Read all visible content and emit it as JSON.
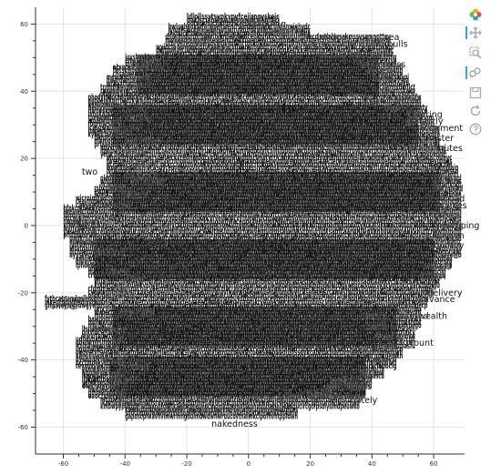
{
  "chart_data": {
    "type": "scatter",
    "title": "",
    "xlabel": "",
    "ylabel": "",
    "xlim": [
      -69,
      70
    ],
    "ylim": [
      -68,
      65
    ],
    "x_ticks": [
      "-60",
      "-40",
      "-20",
      "0",
      "20",
      "40",
      "60"
    ],
    "y_ticks": [
      "60",
      "40",
      "20",
      "0",
      "-20",
      "-40",
      "-60"
    ],
    "grid": true,
    "legend": "none",
    "points": [
      {
        "x": -5,
        "y": 61,
        "label": "breast",
        "size": "large"
      },
      {
        "x": 0,
        "y": 60,
        "label": "standing",
        "size": "large"
      },
      {
        "x": 8,
        "y": 58,
        "label": "fishing",
        "size": "large"
      },
      {
        "x": 4,
        "y": 58,
        "label": "looked",
        "size": "large"
      },
      {
        "x": -18,
        "y": 58,
        "label": "ferried",
        "size": "large"
      },
      {
        "x": -24,
        "y": 55,
        "label": "rejoiced",
        "size": "large"
      },
      {
        "x": 22,
        "y": 56,
        "label": "tended",
        "size": "large"
      },
      {
        "x": 18,
        "y": 54,
        "label": "reverse",
        "size": "large"
      },
      {
        "x": 31,
        "y": 54,
        "label": "drowning",
        "size": "large"
      },
      {
        "x": 36,
        "y": 55,
        "label": "paused",
        "size": "large"
      },
      {
        "x": 44,
        "y": 56,
        "label": "sea",
        "size": "large"
      },
      {
        "x": 45,
        "y": 54,
        "label": "bulls",
        "size": "large"
      },
      {
        "x": -25,
        "y": 53,
        "label": "along",
        "size": "large"
      },
      {
        "x": -13,
        "y": 53,
        "label": "lying",
        "size": "large"
      },
      {
        "x": 22,
        "y": 51,
        "label": "shattered",
        "size": "large"
      },
      {
        "x": 35,
        "y": 51,
        "label": "sandals",
        "size": "large"
      },
      {
        "x": -38,
        "y": 49,
        "label": "streets",
        "size": "large"
      },
      {
        "x": 36,
        "y": 48,
        "label": "wilderness",
        "size": "large"
      },
      {
        "x": -43,
        "y": 47,
        "label": "baskets",
        "size": "large"
      },
      {
        "x": -33,
        "y": 47,
        "label": "bow",
        "size": "large"
      },
      {
        "x": 39,
        "y": 46,
        "label": "reap",
        "size": "large"
      },
      {
        "x": -39,
        "y": 44,
        "label": "feast",
        "size": "large"
      },
      {
        "x": 40,
        "y": 44,
        "label": "bless",
        "size": "large"
      },
      {
        "x": -36,
        "y": 42,
        "label": "sun",
        "size": "large"
      },
      {
        "x": -46,
        "y": 40,
        "label": "roof",
        "size": "large"
      },
      {
        "x": 43,
        "y": 40,
        "label": "fire",
        "size": "large"
      },
      {
        "x": 38,
        "y": 37,
        "label": "hath",
        "size": "large"
      },
      {
        "x": 47,
        "y": 38,
        "label": "stakes",
        "size": "large"
      },
      {
        "x": -51,
        "y": 36,
        "label": "blemish",
        "size": "large"
      },
      {
        "x": 44,
        "y": 35,
        "label": "inning",
        "size": "large"
      },
      {
        "x": -41,
        "y": 35,
        "label": "honey",
        "size": "large"
      },
      {
        "x": 52,
        "y": 33,
        "label": "offering",
        "size": "large"
      },
      {
        "x": -40,
        "y": 32,
        "label": "curse",
        "size": "large"
      },
      {
        "x": 51,
        "y": 31,
        "label": "gallantly",
        "size": "large"
      },
      {
        "x": -49,
        "y": 31,
        "label": "blood",
        "size": "large"
      },
      {
        "x": 56,
        "y": 29,
        "label": "judgment",
        "size": "large"
      },
      {
        "x": -44,
        "y": 29,
        "label": "above",
        "size": "large"
      },
      {
        "x": -48,
        "y": 27,
        "label": "tables",
        "size": "large"
      },
      {
        "x": 55,
        "y": 26,
        "label": "minister",
        "size": "large"
      },
      {
        "x": -40,
        "y": 25,
        "label": "sacrifice",
        "size": "large"
      },
      {
        "x": 50,
        "y": 23,
        "label": "spoken",
        "size": "large"
      },
      {
        "x": 58,
        "y": 23,
        "label": "minutes",
        "size": "large"
      },
      {
        "x": -40,
        "y": 22,
        "label": "came",
        "size": "large"
      },
      {
        "x": 56,
        "y": 21,
        "label": "either",
        "size": "large"
      },
      {
        "x": -41,
        "y": 18,
        "label": "tongues",
        "size": "large"
      },
      {
        "x": 57,
        "y": 17,
        "label": "sandy",
        "size": "large"
      },
      {
        "x": -54,
        "y": 16,
        "label": "two",
        "size": "large"
      },
      {
        "x": -40,
        "y": 15,
        "label": "corners",
        "size": "large"
      },
      {
        "x": 60,
        "y": 14,
        "label": "goats",
        "size": "large"
      },
      {
        "x": -38,
        "y": 13,
        "label": "raiment",
        "size": "large"
      },
      {
        "x": 60,
        "y": 11,
        "label": "stoned",
        "size": "large"
      },
      {
        "x": -46,
        "y": 11,
        "label": "width",
        "size": "large"
      },
      {
        "x": -41,
        "y": 9,
        "label": "pillars",
        "size": "large"
      },
      {
        "x": 62,
        "y": 8,
        "label": "broad",
        "size": "large"
      },
      {
        "x": -49,
        "y": 6,
        "label": "covered",
        "size": "large"
      },
      {
        "x": 62,
        "y": 6,
        "label": "spices",
        "size": "large"
      },
      {
        "x": -59,
        "y": 4,
        "label": "eat",
        "size": "large"
      },
      {
        "x": 60,
        "y": 3,
        "label": "bread",
        "size": "large"
      },
      {
        "x": -57,
        "y": 1,
        "label": "wheat",
        "size": "large"
      },
      {
        "x": 63,
        "y": 0,
        "label": "weeping",
        "size": "large"
      },
      {
        "x": -56,
        "y": -2,
        "label": "drink",
        "size": "large"
      },
      {
        "x": 60,
        "y": -3,
        "label": "garden",
        "size": "large"
      },
      {
        "x": -56,
        "y": -5,
        "label": "taste",
        "size": "large"
      },
      {
        "x": 61,
        "y": -6,
        "label": "barley",
        "size": "large"
      },
      {
        "x": -50,
        "y": -8,
        "label": "ground",
        "size": "large"
      },
      {
        "x": 60,
        "y": -9,
        "label": "cattle",
        "size": "large"
      },
      {
        "x": -55,
        "y": -11,
        "label": "figs",
        "size": "large"
      },
      {
        "x": 57,
        "y": -12,
        "label": "vessel",
        "size": "large"
      },
      {
        "x": -46,
        "y": -14,
        "label": "vines",
        "size": "large"
      },
      {
        "x": 56,
        "y": -15,
        "label": "priest",
        "size": "large"
      },
      {
        "x": -40,
        "y": -16,
        "label": "clean",
        "size": "large"
      },
      {
        "x": -44,
        "y": -19,
        "label": "cast",
        "size": "large"
      },
      {
        "x": 58,
        "y": -20,
        "label": "delivery",
        "size": "large"
      },
      {
        "x": -46,
        "y": -21,
        "label": "barren",
        "size": "large"
      },
      {
        "x": 55,
        "y": -22,
        "label": "advance",
        "size": "large"
      },
      {
        "x": -61,
        "y": -22,
        "label": "stunned",
        "size": "large"
      },
      {
        "x": -64,
        "y": -24,
        "label": "smote",
        "size": "large"
      },
      {
        "x": 45,
        "y": -24,
        "label": "nonce",
        "size": "large"
      },
      {
        "x": -42,
        "y": -26,
        "label": "strength",
        "size": "large"
      },
      {
        "x": 37,
        "y": -27,
        "label": "serve",
        "size": "large"
      },
      {
        "x": 38,
        "y": -30,
        "label": "boar",
        "size": "large"
      },
      {
        "x": 48,
        "y": -27,
        "label": "wanted",
        "size": "large"
      },
      {
        "x": 55,
        "y": -27,
        "label": "wealth",
        "size": "large"
      },
      {
        "x": -50,
        "y": -31,
        "label": "brother",
        "size": "large"
      },
      {
        "x": 41,
        "y": -33,
        "label": "weapon",
        "size": "large"
      },
      {
        "x": -44,
        "y": -34,
        "label": "lot",
        "size": "large"
      },
      {
        "x": 42,
        "y": -36,
        "label": "bath",
        "size": "large"
      },
      {
        "x": 52,
        "y": -35,
        "label": "count",
        "size": "large"
      },
      {
        "x": -52,
        "y": -36,
        "label": "fortune",
        "size": "large"
      },
      {
        "x": 33,
        "y": -37,
        "label": "spending",
        "size": "large"
      },
      {
        "x": -56,
        "y": -39,
        "label": "festival",
        "size": "large"
      },
      {
        "x": -47,
        "y": -40,
        "label": "seven",
        "size": "large"
      },
      {
        "x": 40,
        "y": -40,
        "label": "poor",
        "size": "large"
      },
      {
        "x": -42,
        "y": -42,
        "label": "fasting",
        "size": "large"
      },
      {
        "x": -50,
        "y": -44,
        "label": "nations",
        "size": "large"
      },
      {
        "x": 36,
        "y": -44,
        "label": "fond",
        "size": "large"
      },
      {
        "x": -45,
        "y": -46,
        "label": "kings",
        "size": "large"
      },
      {
        "x": 27,
        "y": -46,
        "label": "weighty",
        "size": "large"
      },
      {
        "x": -52,
        "y": -48,
        "label": "princes",
        "size": "large"
      },
      {
        "x": 25,
        "y": -48,
        "label": "classes",
        "size": "large"
      },
      {
        "x": 35,
        "y": -48,
        "label": "ous",
        "size": "large"
      },
      {
        "x": -47,
        "y": -50,
        "label": "jacob",
        "size": "large"
      },
      {
        "x": 20,
        "y": -51,
        "label": "prizes",
        "size": "large"
      },
      {
        "x": 28,
        "y": -51,
        "label": "mousy",
        "size": "large"
      },
      {
        "x": 33,
        "y": -52,
        "label": "nately",
        "size": "large"
      },
      {
        "x": -43,
        "y": -53,
        "label": "garden",
        "size": "large"
      },
      {
        "x": -29,
        "y": -55,
        "label": "jacob",
        "size": "large"
      },
      {
        "x": -17,
        "y": -52,
        "label": "verily",
        "size": "large"
      },
      {
        "x": 2,
        "y": -52,
        "label": "utilities",
        "size": "large"
      },
      {
        "x": 19,
        "y": -50,
        "label": "glassi",
        "size": "large"
      },
      {
        "x": 11,
        "y": -51,
        "label": "ocar",
        "size": "large"
      },
      {
        "x": -29,
        "y": -55,
        "label": "commanded",
        "size": "large"
      },
      {
        "x": -11,
        "y": -55,
        "label": "inherit",
        "size": "large"
      },
      {
        "x": 4,
        "y": -55,
        "label": "exalt",
        "size": "large"
      },
      {
        "x": -12,
        "y": -59,
        "label": "nakedness",
        "size": "large"
      }
    ]
  },
  "toolbar": {
    "logo": "bokeh-logo-icon",
    "tools": [
      {
        "name": "pan-tool",
        "icon": "pan-icon",
        "active": true
      },
      {
        "name": "box-zoom-tool",
        "icon": "box-zoom-icon",
        "active": false
      },
      {
        "name": "wheel-zoom-tool",
        "icon": "wheel-zoom-icon",
        "active": true
      },
      {
        "name": "save-tool",
        "icon": "save-icon",
        "active": false
      },
      {
        "name": "reset-tool",
        "icon": "reset-icon",
        "active": false
      },
      {
        "name": "help-tool",
        "icon": "help-icon",
        "active": false
      }
    ],
    "active_color": "#26aae1"
  },
  "colors": {
    "text": "#111111",
    "grid": "#e5e5e5",
    "axis": "#333333"
  }
}
